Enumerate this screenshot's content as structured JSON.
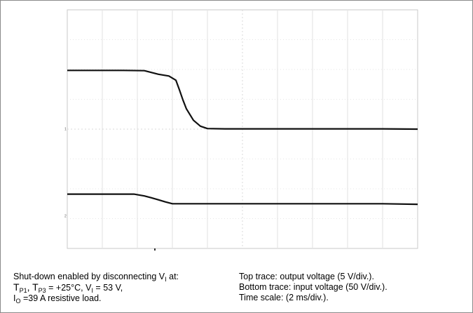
{
  "chart_data": {
    "type": "line",
    "title": "",
    "xlabel": "",
    "ylabel": "",
    "grid": true,
    "x_divisions": 10,
    "y_divisions": 8,
    "x_unit": "div",
    "y_unit": "div",
    "xlim": [
      0,
      10
    ],
    "ylim": [
      -4,
      4
    ],
    "channel_markers": [
      "1",
      "2"
    ],
    "series": [
      {
        "name": "Top trace: output voltage (5 V/div.)",
        "x": [
          0,
          0.8,
          1.6,
          2.2,
          2.6,
          2.9,
          3.1,
          3.2,
          3.3,
          3.4,
          3.6,
          3.8,
          4.0,
          4.5,
          5.0,
          6.0,
          7.0,
          8.0,
          9.0,
          10.0
        ],
        "y": [
          1.97,
          1.97,
          1.97,
          1.96,
          1.84,
          1.78,
          1.64,
          1.32,
          0.98,
          0.68,
          0.3,
          0.1,
          0.02,
          0.01,
          0.01,
          0.01,
          0.01,
          0.01,
          0.01,
          0.0
        ]
      },
      {
        "name": "Bottom trace: input voltage (50 V/div.)",
        "x": [
          0,
          1.0,
          1.9,
          2.2,
          2.4,
          2.6,
          2.8,
          3.0,
          3.3,
          4.0,
          5.0,
          6.0,
          7.0,
          8.0,
          9.0,
          10.0
        ],
        "y": [
          -2.18,
          -2.18,
          -2.18,
          -2.24,
          -2.3,
          -2.37,
          -2.44,
          -2.5,
          -2.5,
          -2.5,
          -2.5,
          -2.5,
          -2.5,
          -2.5,
          -2.5,
          -2.52
        ]
      }
    ]
  },
  "caption": {
    "left": {
      "line1_prefix": "Shut-down enabled by disconnecting V",
      "line1_sub": "I",
      "line1_suffix": " at:",
      "line2_t": "T",
      "line2_sub1": "P1",
      "line2_sep": ", T",
      "line2_sub2": "P3",
      "line2_mid": " = +25°C, V",
      "line2_sub3": "I",
      "line2_suffix": " = 53 V,",
      "line3_i": "I",
      "line3_sub": "O",
      "line3_suffix": " =39 A resistive load."
    },
    "right": {
      "line1": "Top trace: output voltage (5 V/div.).",
      "line2": "Bottom trace: input voltage (50 V/div.).",
      "line3": "Time scale: (2 ms/div.)."
    }
  }
}
